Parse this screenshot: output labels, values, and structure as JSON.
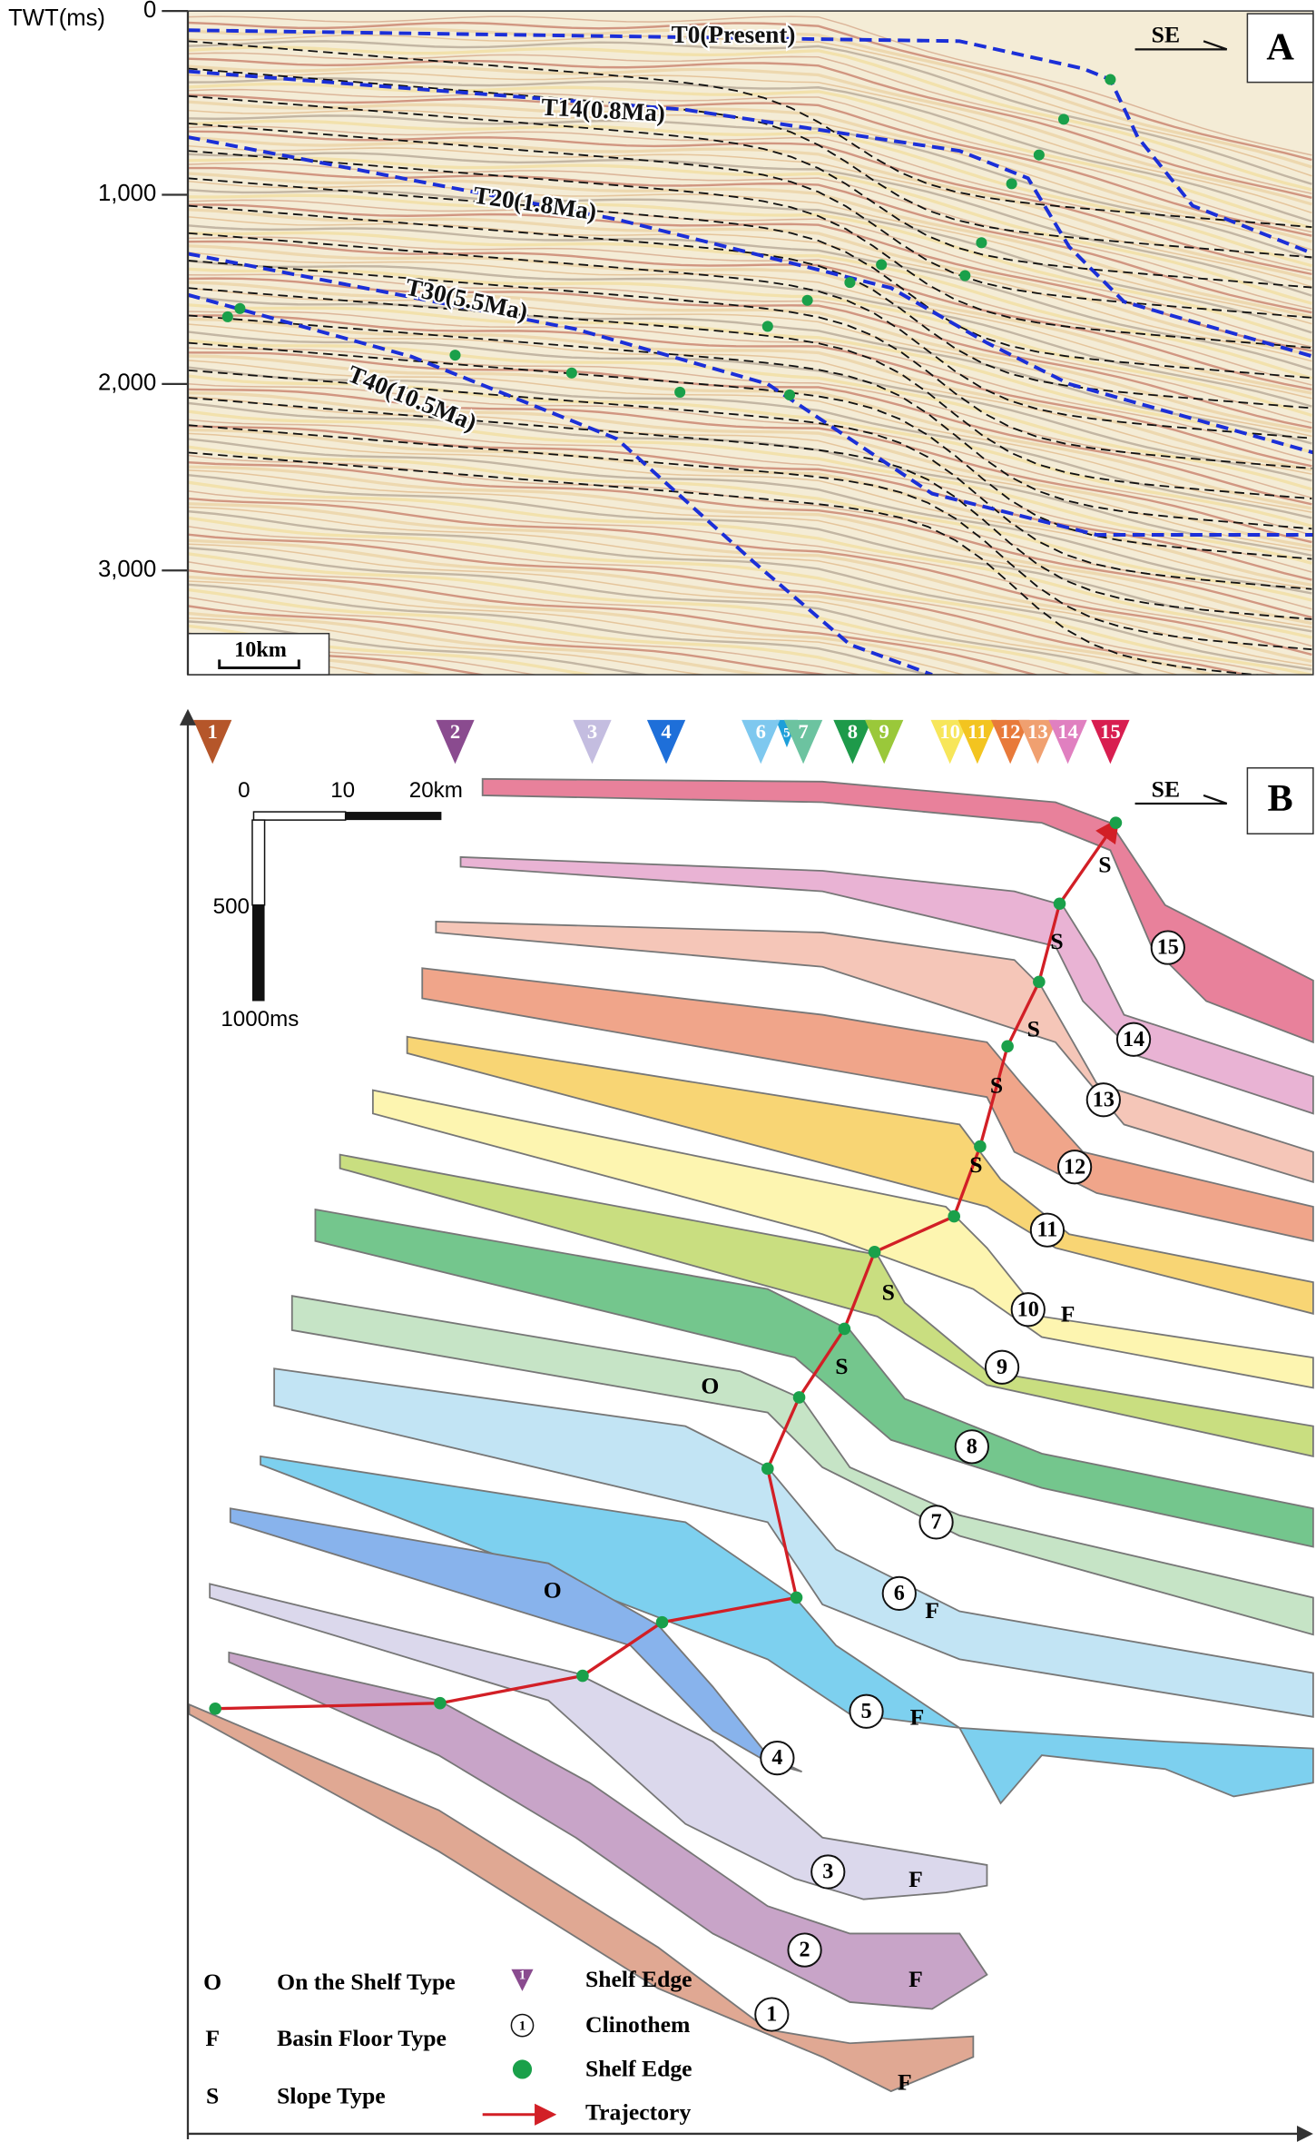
{
  "panel_a": {
    "label": "A",
    "direction": "SE",
    "axis_title": "TWT(ms)",
    "ticks": [
      "0",
      "1,000",
      "2,000",
      "3,000"
    ],
    "scale": "10km",
    "horizons": [
      "T0(Present)",
      "T14(0.8Ma)",
      "T20(1.8Ma)",
      "T30(5.5Ma)",
      "T40(10.5Ma)"
    ]
  },
  "panel_b": {
    "label": "B",
    "direction": "SE",
    "scale": {
      "h": [
        "0",
        "10",
        "20km"
      ],
      "v": [
        "500",
        "1000ms"
      ]
    },
    "shelf_edges": [
      "1",
      "2",
      "3",
      "4",
      "5",
      "6",
      "7",
      "8",
      "9",
      "10",
      "11",
      "12",
      "13",
      "14",
      "15"
    ],
    "clinothems": [
      "1",
      "2",
      "3",
      "4",
      "5",
      "6",
      "7",
      "8",
      "9",
      "10",
      "11",
      "12",
      "13",
      "14",
      "15"
    ],
    "types": [
      "S",
      "S",
      "S",
      "S",
      "S",
      "S",
      "S",
      "O",
      "O",
      "F",
      "F",
      "F",
      "F",
      "F",
      "F"
    ],
    "legend": [
      {
        "symbol": "O",
        "text": "On the Shelf Type"
      },
      {
        "symbol": "F",
        "text": "Basin Floor Type"
      },
      {
        "symbol": "S",
        "text": "Slope Type"
      },
      {
        "symbol": "1",
        "text": "Shelf Edge"
      },
      {
        "symbol": "1",
        "text": "Clinothem"
      },
      {
        "text": "Shelf Edge"
      },
      {
        "text": "Trajectory"
      }
    ]
  }
}
